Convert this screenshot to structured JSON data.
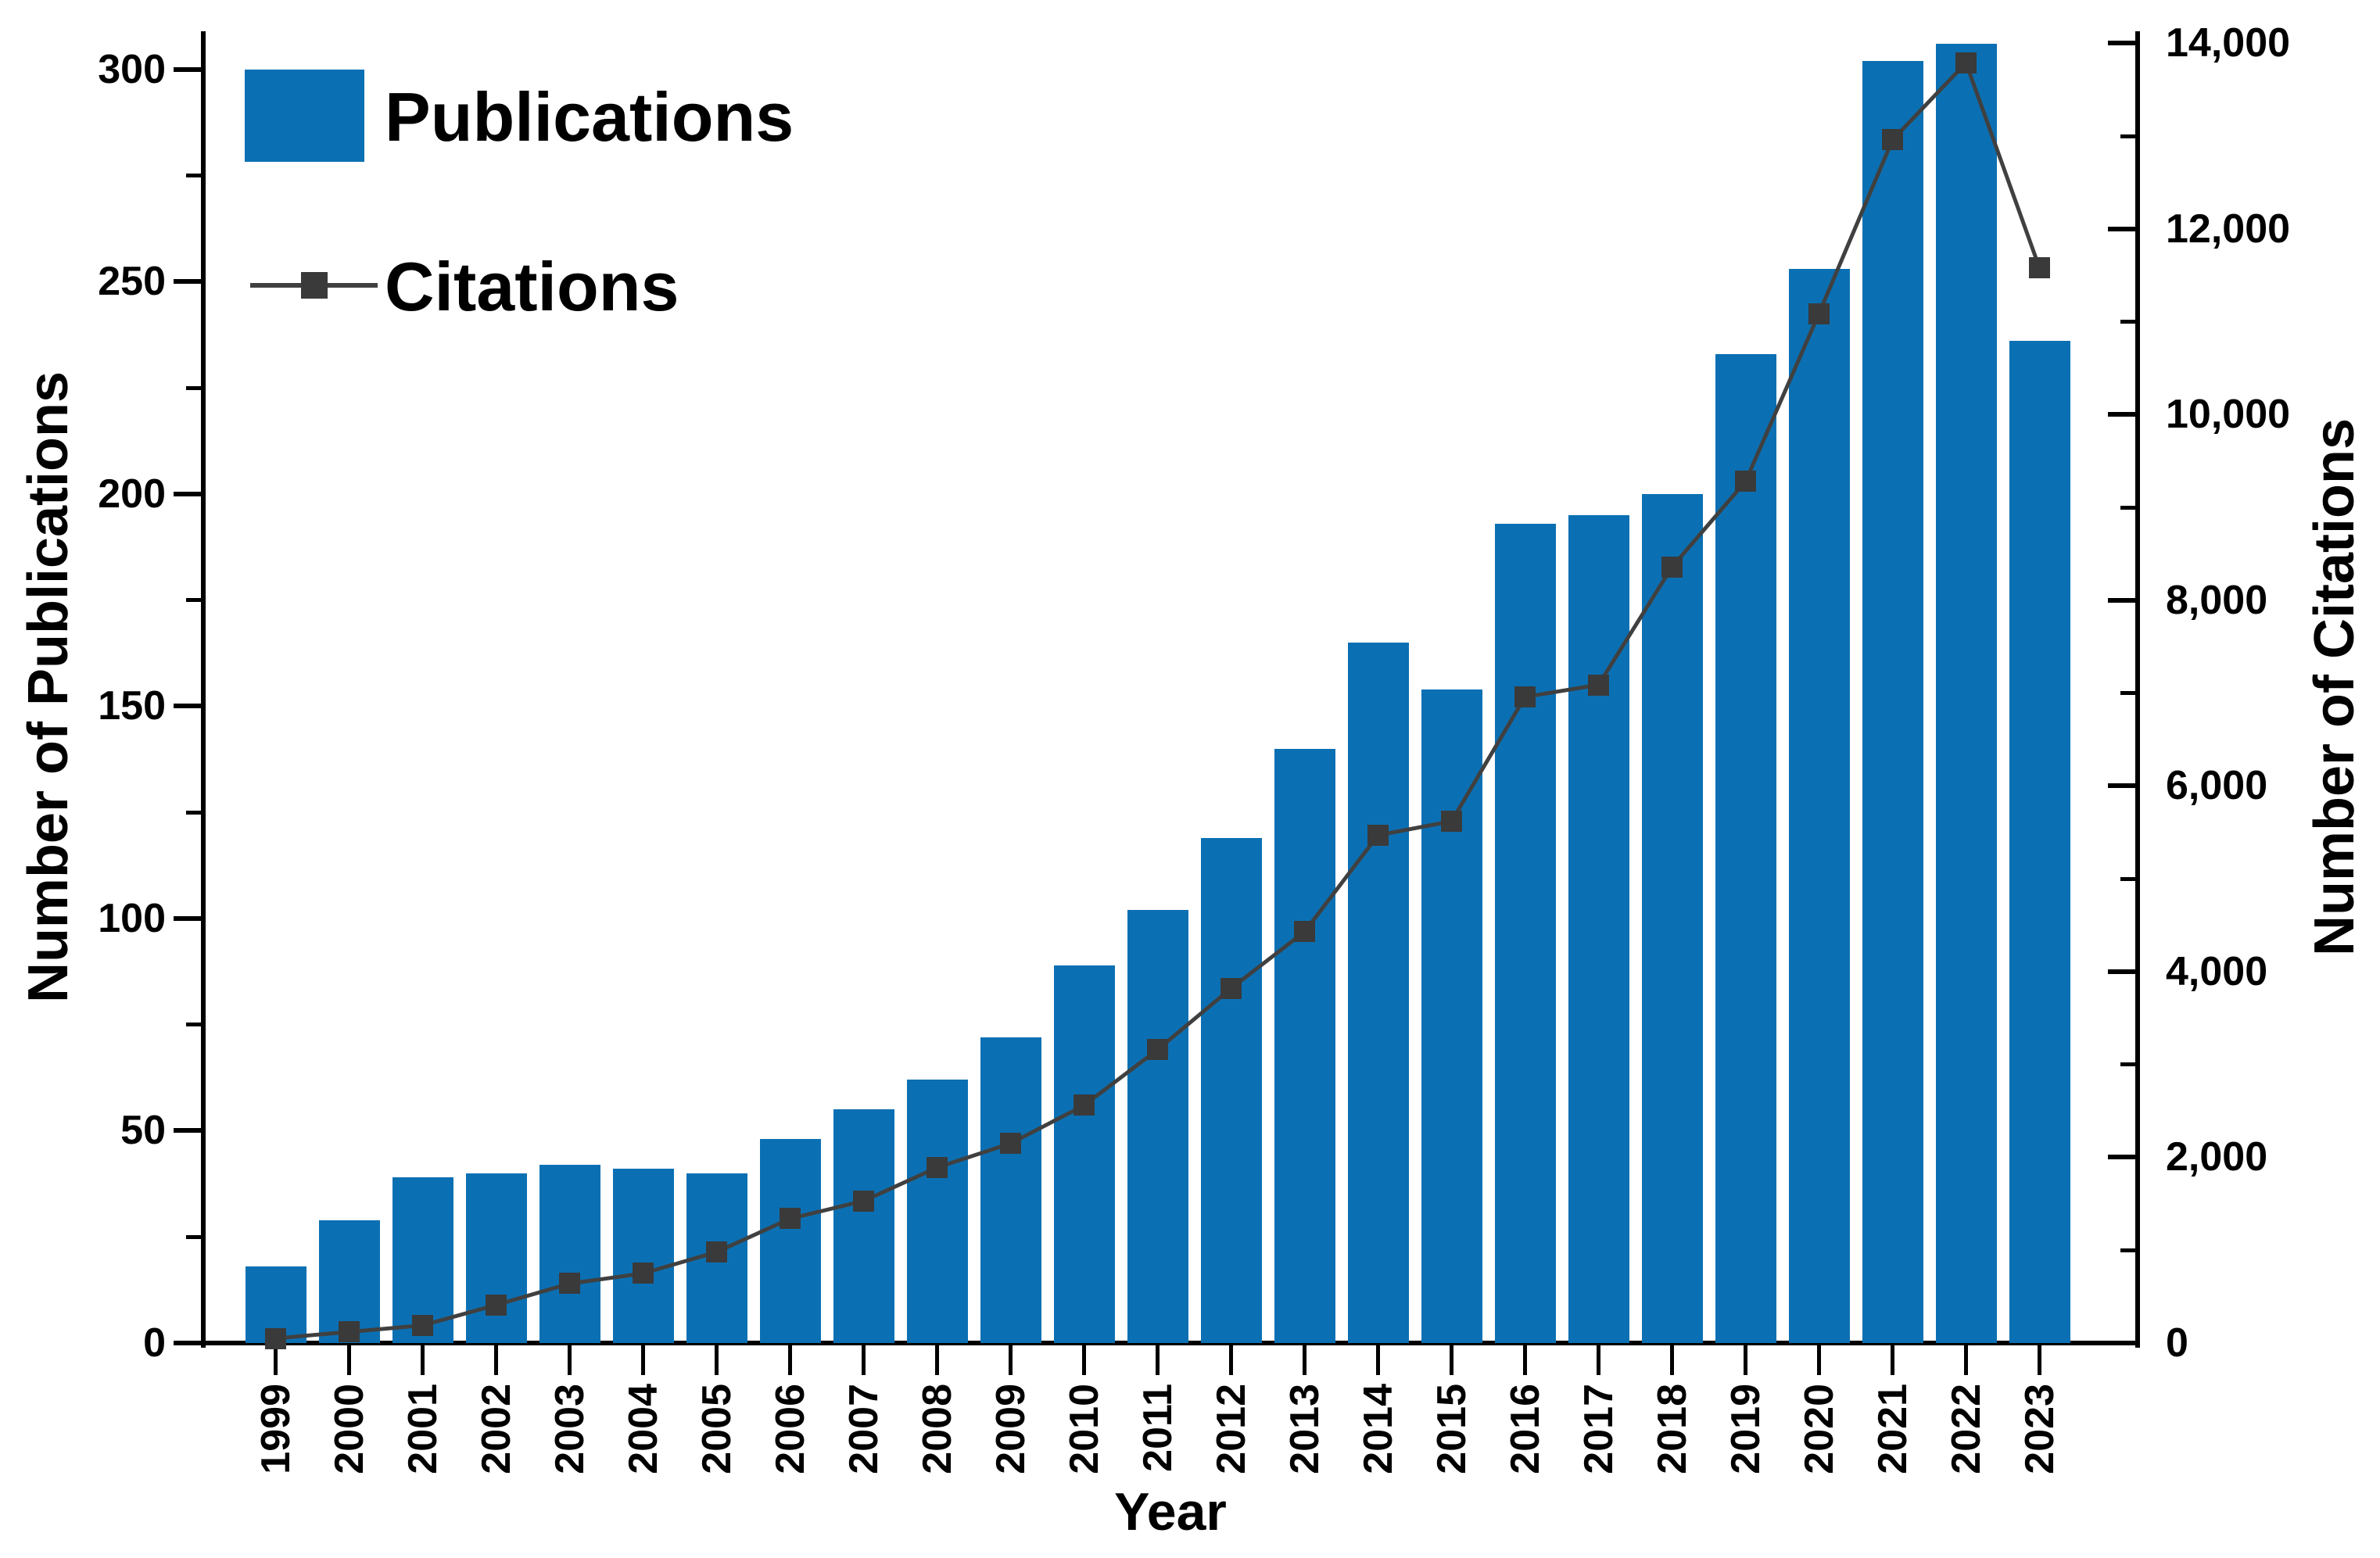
{
  "chart_data": {
    "type": "bar",
    "title": "",
    "categories": [
      "1999",
      "2000",
      "2001",
      "2002",
      "2003",
      "2004",
      "2005",
      "2006",
      "2007",
      "2008",
      "2009",
      "2010",
      "2011",
      "2012",
      "2013",
      "2014",
      "2015",
      "2016",
      "2017",
      "2018",
      "2019",
      "2020",
      "2021",
      "2022",
      "2023"
    ],
    "series": [
      {
        "name": "Publications",
        "type": "bar",
        "axis": "left",
        "color": "#0b70b3",
        "values": [
          18,
          29,
          39,
          40,
          42,
          41,
          40,
          48,
          55,
          62,
          72,
          89,
          102,
          119,
          140,
          165,
          154,
          193,
          195,
          200,
          233,
          253,
          302,
          306,
          236
        ]
      },
      {
        "name": "Citations",
        "type": "line",
        "axis": "right",
        "color": "#3d3d3d",
        "values": [
          50,
          120,
          190,
          410,
          640,
          750,
          980,
          1340,
          1530,
          1890,
          2150,
          2560,
          3160,
          3820,
          4430,
          5470,
          5620,
          6960,
          7090,
          8360,
          9280,
          11090,
          12960,
          13790,
          11580
        ]
      }
    ],
    "xlabel": "Year",
    "left_axis": {
      "label": "Number of Publications",
      "min": 0,
      "max": 309,
      "major_step": 50,
      "minor_step": 25,
      "major_ticks": [
        0,
        50,
        100,
        150,
        200,
        250,
        300
      ],
      "tick_labels": [
        "0",
        "50",
        "100",
        "150",
        "200",
        "250",
        "300"
      ]
    },
    "right_axis": {
      "label": "Number of Citations",
      "min": 0,
      "max": 14130,
      "major_step": 2000,
      "minor_step": 1000,
      "major_ticks": [
        0,
        2000,
        4000,
        6000,
        8000,
        10000,
        12000,
        14000
      ],
      "tick_labels": [
        "0",
        "2,000",
        "4,000",
        "6,000",
        "8,000",
        "10,000",
        "12,000",
        "14,000"
      ]
    },
    "x_axis": {
      "label": "Year"
    },
    "legend": {
      "position": "top-left",
      "entries": [
        {
          "label": "Publications",
          "swatch": "bar"
        },
        {
          "label": "Citations",
          "swatch": "line-marker"
        }
      ]
    },
    "grid": false,
    "background": "#ffffff",
    "colors": {
      "bar": "#0b70b3",
      "line": "#404040",
      "marker": "#3a3a3a",
      "axis": "#000000",
      "text": "#000000"
    }
  }
}
